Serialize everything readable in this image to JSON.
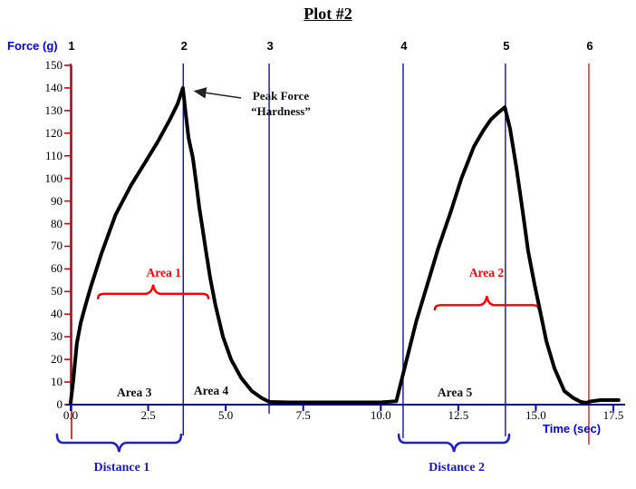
{
  "title": "Plot #2",
  "axes": {
    "y_label": "Force (g)",
    "x_label": "Time (sec)",
    "y_ticks": [
      150,
      140,
      130,
      120,
      110,
      100,
      90,
      80,
      70,
      60,
      50,
      40,
      30,
      20,
      10,
      0
    ],
    "x_ticks": [
      "0.0",
      "2.5",
      "5.0",
      "7.5",
      "10.0",
      "12.5",
      "15.0",
      "17.5"
    ],
    "x_min": 0,
    "x_max": 17.5,
    "y_min": 0,
    "y_max": 150
  },
  "colors": {
    "curve": "#000000",
    "marker_line": "#000080",
    "marker_line_last": "#ee0000",
    "x_axis": "#0000cd",
    "y_axis_spine": "#dd0000",
    "area_red": "#ff0000",
    "area_black": "#111111",
    "distance_blue": "#2121cc",
    "axis_name_blue": "#0000ee"
  },
  "markers": [
    {
      "label": "1",
      "time": 0.0
    },
    {
      "label": "2",
      "time": 3.63
    },
    {
      "label": "3",
      "time": 6.4
    },
    {
      "label": "4",
      "time": 10.72
    },
    {
      "label": "5",
      "time": 14.02
    },
    {
      "label": "6",
      "time": 16.71,
      "red": true
    }
  ],
  "annotations": {
    "peak": {
      "line1": "Peak Force",
      "line2": "“Hardness”"
    },
    "areas": [
      {
        "label": "Area 1",
        "color": "red",
        "t": 3.0,
        "force": 58,
        "brace": {
          "t1": 0.88,
          "t2": 4.44,
          "force": 49
        }
      },
      {
        "label": "Area 2",
        "color": "red",
        "t": 13.41,
        "force": 58,
        "brace": {
          "t1": 11.74,
          "t2": 15.1,
          "force": 44
        }
      },
      {
        "label": "Area 3",
        "color": "black",
        "t": 2.05,
        "force": 5.2
      },
      {
        "label": "Area 4",
        "color": "black",
        "t": 4.53,
        "force": 6.0
      },
      {
        "label": "Area 5",
        "color": "black",
        "t": 12.39,
        "force": 5.2
      }
    ],
    "distances": [
      {
        "label": "Distance 1",
        "t1": -0.44,
        "t2": 3.56
      },
      {
        "label": "Distance 2",
        "t1": 10.58,
        "t2": 14.14
      }
    ]
  },
  "chart_data": {
    "type": "line",
    "title": "Plot #2",
    "xlabel": "Time (sec)",
    "ylabel": "Force (g)",
    "xlim": [
      0,
      17.5
    ],
    "ylim": [
      0,
      150
    ],
    "grid": false,
    "events": {
      "1": 0.0,
      "2": 3.63,
      "3": 6.4,
      "4": 10.72,
      "5": 14.02,
      "6": 16.71
    },
    "peak_force_hardness": 140,
    "second_peak_force": 131.5,
    "series": [
      {
        "name": "Force",
        "points": [
          [
            0,
            1
          ],
          [
            0.08,
            10
          ],
          [
            0.2,
            27
          ],
          [
            0.32,
            36
          ],
          [
            0.48,
            44
          ],
          [
            0.65,
            52
          ],
          [
            1.0,
            67
          ],
          [
            1.45,
            84
          ],
          [
            1.95,
            97
          ],
          [
            2.4,
            107
          ],
          [
            2.8,
            116
          ],
          [
            3.2,
            126
          ],
          [
            3.45,
            133
          ],
          [
            3.62,
            140
          ],
          [
            3.7,
            130
          ],
          [
            3.8,
            118
          ],
          [
            3.94,
            109
          ],
          [
            4.05,
            98
          ],
          [
            4.15,
            87
          ],
          [
            4.25,
            78
          ],
          [
            4.35,
            69
          ],
          [
            4.5,
            56
          ],
          [
            4.67,
            44
          ],
          [
            4.91,
            30
          ],
          [
            5.17,
            20
          ],
          [
            5.49,
            12
          ],
          [
            5.84,
            6
          ],
          [
            6.15,
            3
          ],
          [
            6.4,
            1.2
          ],
          [
            7,
            1
          ],
          [
            8,
            1
          ],
          [
            9,
            1
          ],
          [
            10,
            1
          ],
          [
            10.5,
            1.5
          ],
          [
            10.8,
            18
          ],
          [
            11.15,
            37
          ],
          [
            11.5,
            53
          ],
          [
            11.85,
            69
          ],
          [
            12.25,
            85
          ],
          [
            12.6,
            100
          ],
          [
            13.0,
            114
          ],
          [
            13.3,
            121
          ],
          [
            13.55,
            126
          ],
          [
            13.78,
            129
          ],
          [
            14.0,
            131.5
          ],
          [
            14.17,
            122
          ],
          [
            14.37,
            105
          ],
          [
            14.58,
            85
          ],
          [
            14.75,
            68
          ],
          [
            14.96,
            53
          ],
          [
            15.16,
            40
          ],
          [
            15.34,
            28
          ],
          [
            15.6,
            16
          ],
          [
            15.92,
            6
          ],
          [
            16.2,
            3
          ],
          [
            16.45,
            1.2
          ],
          [
            16.62,
            0.8
          ],
          [
            16.78,
            1.5
          ],
          [
            17.1,
            2
          ],
          [
            17.4,
            2
          ],
          [
            17.67,
            2
          ]
        ]
      }
    ]
  }
}
